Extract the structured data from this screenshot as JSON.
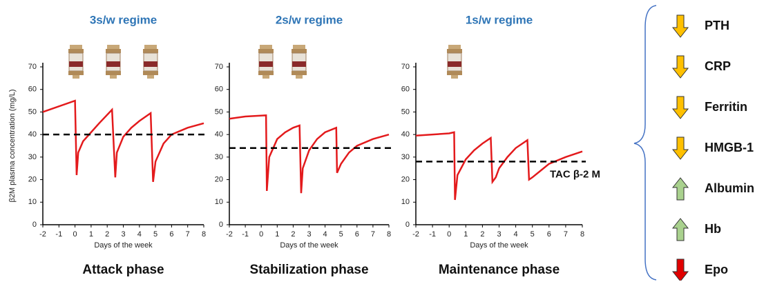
{
  "chart_data": [
    {
      "type": "line",
      "title": "3s/w regime",
      "xlabel": "Days of the week",
      "ylabel": "β2M plasma concentration (mg/L)",
      "caption": "Attack phase",
      "color": "#e31a1c",
      "threshold": 40,
      "x": [
        -2,
        0,
        0.1,
        0.2,
        0.5,
        1,
        1.5,
        2.3,
        2.5,
        2.6,
        3,
        3.5,
        4,
        4.7,
        4.85,
        5,
        5.5,
        6,
        7,
        8
      ],
      "values": [
        50,
        55,
        22,
        32,
        37,
        41,
        45,
        51,
        21,
        32,
        39,
        43,
        46,
        49.5,
        19,
        28,
        36,
        40,
        43,
        45
      ],
      "xlim": [
        -2,
        8
      ],
      "xticks": [
        -2,
        -1,
        0,
        1,
        2,
        3,
        4,
        5,
        6,
        7,
        8
      ],
      "ylim": [
        0,
        70
      ],
      "yticks": [
        0,
        10,
        20,
        30,
        40,
        50,
        60,
        70
      ]
    },
    {
      "type": "line",
      "title": "2s/w regime",
      "xlabel": "Days of the week",
      "caption": "Stabilization phase",
      "color": "#e31a1c",
      "threshold": 34,
      "x": [
        -2,
        -1,
        0.3,
        0.35,
        0.5,
        1,
        1.5,
        2,
        2.4,
        2.5,
        2.6,
        3,
        3.5,
        4,
        4.7,
        4.75,
        5,
        5.5,
        6,
        7,
        8
      ],
      "values": [
        47,
        48,
        48.5,
        15,
        30,
        38,
        41,
        43,
        44,
        14,
        25,
        33,
        38,
        41,
        43,
        23,
        27,
        32,
        35,
        38,
        40
      ],
      "xlim": [
        -2,
        8
      ],
      "xticks": [
        -2,
        -1,
        0,
        1,
        2,
        3,
        4,
        5,
        6,
        7,
        8
      ],
      "ylim": [
        0,
        70
      ],
      "yticks": [
        0,
        10,
        20,
        30,
        40,
        50,
        60,
        70
      ]
    },
    {
      "type": "line",
      "title": "1s/w regime",
      "xlabel": "Days of the week",
      "caption": "Maintenance phase",
      "annotation": "TAC β-2 M",
      "color": "#e31a1c",
      "threshold": 28,
      "x": [
        -2,
        0,
        0.3,
        0.35,
        0.5,
        1,
        1.5,
        2,
        2.5,
        2.6,
        2.8,
        3,
        3.5,
        4,
        4.7,
        4.8,
        5,
        5.5,
        6,
        7,
        8
      ],
      "values": [
        39.5,
        40.5,
        41,
        11,
        22,
        29,
        33,
        36,
        38.5,
        19,
        21,
        25,
        30,
        34,
        37.5,
        20,
        21,
        24,
        27,
        30,
        32.5
      ],
      "xlim": [
        -2,
        8
      ],
      "xticks": [
        -2,
        -1,
        0,
        1,
        2,
        3,
        4,
        5,
        6,
        7,
        8
      ],
      "ylim": [
        0,
        70
      ],
      "yticks": [
        0,
        10,
        20,
        30,
        40,
        50,
        60,
        70
      ]
    }
  ],
  "markers": [
    {
      "label": "PTH",
      "direction": "down",
      "color": "#ffc000"
    },
    {
      "label": "CRP",
      "direction": "down",
      "color": "#ffc000"
    },
    {
      "label": "Ferritin",
      "direction": "down",
      "color": "#ffc000"
    },
    {
      "label": "HMGB-1",
      "direction": "down",
      "color": "#ffc000"
    },
    {
      "label": "Albumin",
      "direction": "up",
      "color": "#a9d18e"
    },
    {
      "label": "Hb",
      "direction": "up",
      "color": "#a9d18e"
    },
    {
      "label": "Epo",
      "direction": "down",
      "color": "#e00000"
    }
  ]
}
